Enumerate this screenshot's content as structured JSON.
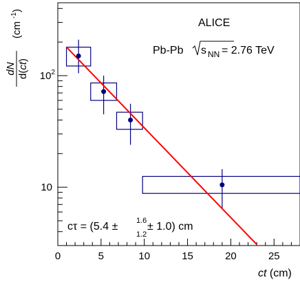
{
  "chart_data": {
    "type": "scatter",
    "annotations": {
      "experiment": "ALICE",
      "system_prefix": "Pb-Pb ",
      "energy_symbol": "s",
      "energy_subscript": "NN",
      "energy_value": " = 2.76 TeV",
      "fit_label_prefix": "cτ = (5.4 ±",
      "fit_err_up": "1.6",
      "fit_err_down": "1.2",
      "fit_label_suffix": " ± 1.0) cm"
    },
    "xlabel": {
      "var": "ct",
      "unit": " (cm)"
    },
    "ylabel": {
      "numerator": "dN",
      "denominator_prefix": "d(",
      "denominator_var": "ct",
      "denominator_suffix": ")",
      "unit_prefix": "(cm",
      "unit_exp": "-1",
      "unit_suffix": ")"
    },
    "xlim": [
      0,
      28
    ],
    "ylim": [
      3,
      450
    ],
    "yscale": "log",
    "xticks": [
      0,
      5,
      10,
      15,
      20,
      25
    ],
    "yticks_major": [
      {
        "value": 10,
        "base": "10",
        "exp": ""
      },
      {
        "value": 100,
        "base": "10",
        "exp": "2"
      }
    ],
    "grid": false,
    "series": [
      {
        "marker_color": "#000080",
        "points": [
          {
            "x": 2.4,
            "y": 150,
            "y_low": 105,
            "y_high": 210,
            "x_low": 1,
            "x_high": 3.8,
            "sys_low": 122,
            "sys_high": 180
          },
          {
            "x": 5.3,
            "y": 72,
            "y_low": 45,
            "y_high": 100,
            "x_low": 3.8,
            "x_high": 6.8,
            "sys_low": 60,
            "sys_high": 86
          },
          {
            "x": 8.4,
            "y": 40,
            "y_low": 24,
            "y_high": 56,
            "x_low": 6.8,
            "x_high": 9.8,
            "sys_low": 33,
            "sys_high": 47
          },
          {
            "x": 19,
            "y": 10.5,
            "y_low": 6.5,
            "y_high": 14.5,
            "x_low": 9.8,
            "x_high": 28,
            "sys_low": 8.8,
            "sys_high": 12.5
          }
        ]
      }
    ],
    "fit": {
      "color": "#ff0000",
      "x_start": 1,
      "x_end": 23,
      "amplitude": 217,
      "ctau": 5.4
    }
  }
}
